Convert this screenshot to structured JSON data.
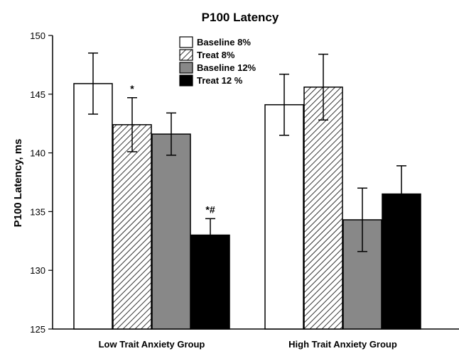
{
  "chart_data": {
    "type": "bar",
    "title": "P100 Latency",
    "xlabel": "",
    "ylabel": "P100 Latency, ms",
    "ylim": [
      125,
      150
    ],
    "yticks": [
      125,
      130,
      135,
      140,
      145,
      150
    ],
    "categories": [
      "Low Trait Anxiety Group",
      "High Trait Anxiety Group"
    ],
    "series": [
      {
        "name": "Baseline 8%",
        "fill": "white",
        "color": "#ffffff",
        "values": [
          145.9,
          144.1
        ],
        "err": [
          2.6,
          2.6
        ]
      },
      {
        "name": "Treat 8%",
        "fill": "hatch",
        "color": "#ffffff",
        "values": [
          142.4,
          145.6
        ],
        "err": [
          2.3,
          2.8
        ]
      },
      {
        "name": "Baseline 12%",
        "fill": "gray",
        "color": "#888888",
        "values": [
          141.6,
          134.3
        ],
        "err": [
          1.8,
          2.7
        ]
      },
      {
        "name": "Treat 12 %",
        "fill": "black",
        "color": "#000000",
        "values": [
          133.0,
          136.5
        ],
        "err": [
          1.4,
          2.4
        ]
      }
    ],
    "annotations": [
      {
        "text": "*",
        "category": 0,
        "series": 1
      },
      {
        "text": "*#",
        "category": 0,
        "series": 3
      }
    ],
    "legend": "top-center",
    "grid": false
  }
}
